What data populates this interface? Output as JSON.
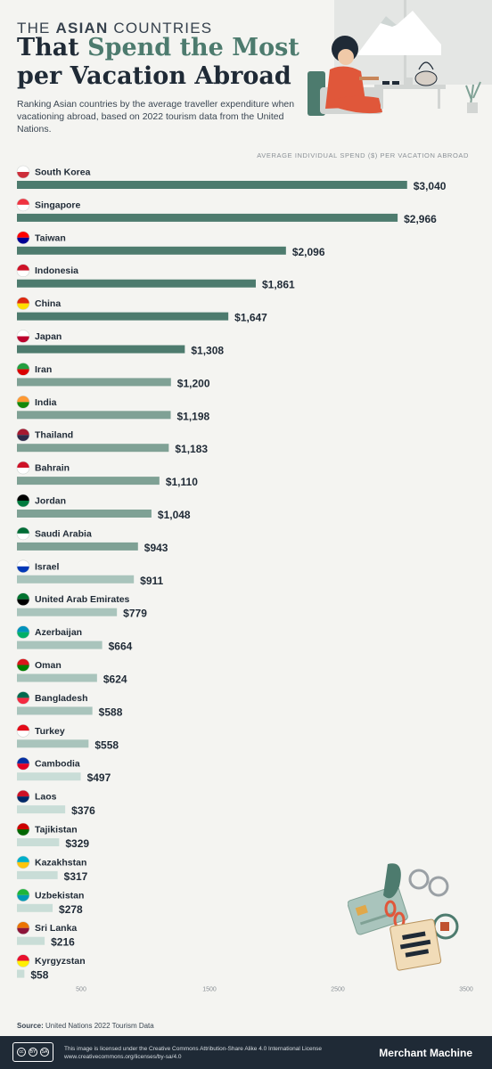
{
  "header": {
    "kicker_prefix": "THE",
    "kicker_bold": "ASIAN",
    "kicker_suffix": "COUNTRIES",
    "title_line1_a": "That",
    "title_line1_b": "Spend the Most",
    "title_line2": "per Vacation Abroad",
    "subtitle": "Ranking Asian countries by the average traveller expenditure when vacationing abroad, based on 2022 tourism data from the United Nations."
  },
  "colors": {
    "title": "#1f2a36",
    "accent": "#4d7b6e",
    "bar_dark": "#4d7b6e",
    "bar_mid": "#7fa195",
    "bar_light": "#a9c4bc",
    "bar_pale": "#c9ddd7"
  },
  "chart_data": {
    "type": "bar",
    "orientation": "horizontal",
    "xlabel": "AVERAGE INDIVIDUAL SPEND ($) PER VACATION ABROAD",
    "xlim": [
      0,
      3500
    ],
    "xticks": [
      "500",
      "1500",
      "2500",
      "3500"
    ],
    "categories": [
      "South Korea",
      "Singapore",
      "Taiwan",
      "Indonesia",
      "China",
      "Japan",
      "Iran",
      "India",
      "Thailand",
      "Bahrain",
      "Jordan",
      "Saudi Arabia",
      "Israel",
      "United Arab Emirates",
      "Azerbaijan",
      "Oman",
      "Bangladesh",
      "Turkey",
      "Cambodia",
      "Laos",
      "Tajikistan",
      "Kazakhstan",
      "Uzbekistan",
      "Sri Lanka",
      "Kyrgyzstan"
    ],
    "values": [
      3040,
      2966,
      2096,
      1861,
      1647,
      1308,
      1200,
      1198,
      1183,
      1110,
      1048,
      943,
      911,
      779,
      664,
      624,
      588,
      558,
      497,
      376,
      329,
      317,
      278,
      216,
      58
    ],
    "value_labels": [
      "$3,040",
      "$2,966",
      "$2,096",
      "$1,861",
      "$1,647",
      "$1,308",
      "$1,200",
      "$1,198",
      "$1,183",
      "$1,110",
      "$1,048",
      "$943",
      "$911",
      "$779",
      "$664",
      "$624",
      "$588",
      "$558",
      "$497",
      "$376",
      "$329",
      "$317",
      "$278",
      "$216",
      "$58"
    ],
    "flag_icons": [
      "south-korea-flag-icon",
      "singapore-flag-icon",
      "taiwan-flag-icon",
      "indonesia-flag-icon",
      "china-flag-icon",
      "japan-flag-icon",
      "iran-flag-icon",
      "india-flag-icon",
      "thailand-flag-icon",
      "bahrain-flag-icon",
      "jordan-flag-icon",
      "saudi-arabia-flag-icon",
      "israel-flag-icon",
      "uae-flag-icon",
      "azerbaijan-flag-icon",
      "oman-flag-icon",
      "bangladesh-flag-icon",
      "turkey-flag-icon",
      "cambodia-flag-icon",
      "laos-flag-icon",
      "tajikistan-flag-icon",
      "kazakhstan-flag-icon",
      "uzbekistan-flag-icon",
      "sri-lanka-flag-icon",
      "kyrgyzstan-flag-icon"
    ],
    "grid": false
  },
  "footer": {
    "source_label": "Source:",
    "source_text": "United Nations 2022 Tourism Data",
    "license_line1": "This image is licensed under the Creative Commons Attribution-Share Alike 4.0 International License",
    "license_line2": "www.creativecommons.org/licenses/by-sa/4.0",
    "brand": "Merchant Machine",
    "cc_badges": [
      "cc",
      "BY",
      "SA"
    ]
  }
}
